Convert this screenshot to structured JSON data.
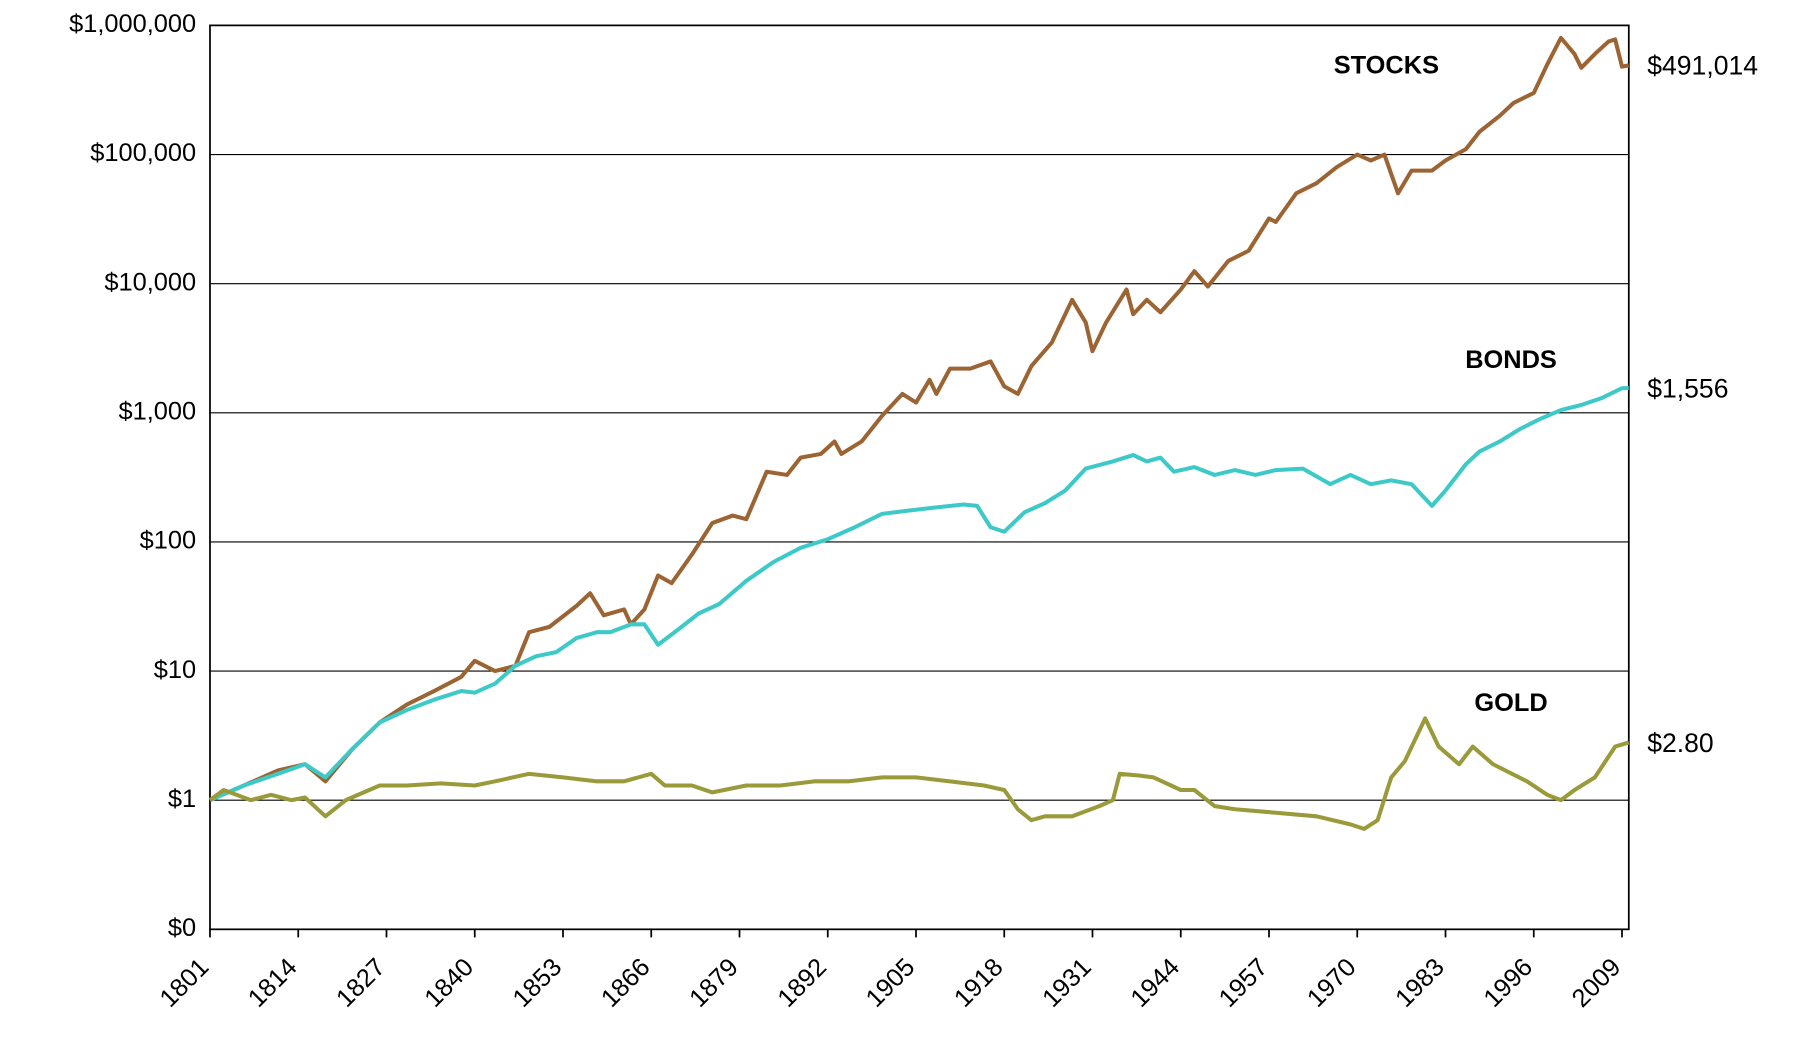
{
  "chart_data": {
    "type": "line",
    "log_y": true,
    "grid": true,
    "xlim": [
      1801,
      2010
    ],
    "xticks": [
      1801,
      1814,
      1827,
      1840,
      1853,
      1866,
      1879,
      1892,
      1905,
      1918,
      1931,
      1944,
      1957,
      1970,
      1983,
      1996,
      2009
    ],
    "ylim": [
      0.1,
      1000000
    ],
    "yticks": [
      {
        "value": 0.1,
        "label": "$0"
      },
      {
        "value": 1,
        "label": "$1"
      },
      {
        "value": 10,
        "label": "$10"
      },
      {
        "value": 100,
        "label": "$100"
      },
      {
        "value": 1000,
        "label": "$1,000"
      },
      {
        "value": 10000,
        "label": "$10,000"
      },
      {
        "value": 100000,
        "label": "$100,000"
      },
      {
        "value": 1000000,
        "label": "$1,000,000"
      }
    ],
    "series": [
      {
        "name": "STOCKS",
        "color": "#9c6433",
        "end_label": "$491,014",
        "x": [
          1801,
          1806,
          1811,
          1815,
          1818,
          1822,
          1826,
          1830,
          1834,
          1838,
          1840,
          1843,
          1846,
          1848,
          1851,
          1855,
          1857,
          1859,
          1862,
          1863,
          1865,
          1867,
          1869,
          1872,
          1875,
          1878,
          1880,
          1883,
          1886,
          1888,
          1891,
          1893,
          1894,
          1897,
          1900,
          1903,
          1905,
          1907,
          1908,
          1910,
          1913,
          1916,
          1918,
          1920,
          1922,
          1925,
          1928,
          1930,
          1931,
          1933,
          1936,
          1937,
          1939,
          1941,
          1944,
          1946,
          1948,
          1951,
          1954,
          1957,
          1958,
          1961,
          1964,
          1967,
          1970,
          1972,
          1974,
          1976,
          1978,
          1981,
          1983,
          1986,
          1988,
          1991,
          1993,
          1996,
          1998,
          2000,
          2002,
          2003,
          2005,
          2007,
          2008,
          2009,
          2010
        ],
        "values": [
          1,
          1.3,
          1.7,
          1.9,
          1.4,
          2.5,
          4,
          5.5,
          7,
          9,
          12,
          10,
          11,
          20,
          22,
          32,
          40,
          27,
          30,
          23,
          30,
          55,
          48,
          80,
          140,
          160,
          150,
          350,
          330,
          450,
          480,
          600,
          480,
          600,
          950,
          1400,
          1200,
          1800,
          1400,
          2200,
          2200,
          2500,
          1600,
          1400,
          2300,
          3500,
          7500,
          5000,
          3000,
          5000,
          9000,
          5800,
          7500,
          6000,
          9000,
          12500,
          9500,
          15000,
          18000,
          32000,
          30000,
          50000,
          60000,
          80000,
          100000,
          90000,
          100000,
          50000,
          75000,
          75000,
          90000,
          110000,
          150000,
          200000,
          250000,
          300000,
          500000,
          800000,
          600000,
          470000,
          600000,
          750000,
          780000,
          480000,
          491014
        ]
      },
      {
        "name": "BONDS",
        "color": "#3ec9c9",
        "end_label": "$1,556",
        "x": [
          1801,
          1806,
          1811,
          1815,
          1818,
          1822,
          1826,
          1830,
          1834,
          1838,
          1840,
          1843,
          1846,
          1849,
          1852,
          1855,
          1858,
          1860,
          1863,
          1865,
          1867,
          1870,
          1873,
          1876,
          1880,
          1884,
          1888,
          1892,
          1896,
          1900,
          1904,
          1908,
          1912,
          1914,
          1916,
          1918,
          1921,
          1924,
          1927,
          1930,
          1934,
          1937,
          1939,
          1941,
          1943,
          1946,
          1949,
          1952,
          1955,
          1958,
          1962,
          1966,
          1969,
          1972,
          1975,
          1978,
          1981,
          1983,
          1986,
          1988,
          1991,
          1994,
          1997,
          2000,
          2003,
          2006,
          2009,
          2010
        ],
        "values": [
          1,
          1.3,
          1.6,
          1.9,
          1.5,
          2.5,
          4,
          5,
          6,
          7,
          6.8,
          8,
          11,
          13,
          14,
          18,
          20,
          20,
          23,
          23,
          16,
          21,
          28,
          33,
          50,
          70,
          90,
          105,
          130,
          165,
          175,
          185,
          195,
          190,
          130,
          120,
          170,
          200,
          250,
          370,
          420,
          470,
          420,
          450,
          350,
          380,
          330,
          360,
          330,
          360,
          370,
          280,
          330,
          280,
          300,
          280,
          190,
          250,
          400,
          500,
          600,
          750,
          900,
          1050,
          1150,
          1300,
          1550,
          1556
        ]
      },
      {
        "name": "GOLD",
        "color": "#9a9a3a",
        "end_label": "$2.80",
        "x": [
          1801,
          1803,
          1807,
          1810,
          1813,
          1815,
          1818,
          1821,
          1826,
          1830,
          1835,
          1840,
          1843,
          1848,
          1853,
          1858,
          1862,
          1866,
          1868,
          1872,
          1875,
          1880,
          1885,
          1890,
          1895,
          1900,
          1905,
          1910,
          1915,
          1918,
          1920,
          1922,
          1924,
          1928,
          1932,
          1934,
          1935,
          1938,
          1940,
          1944,
          1946,
          1949,
          1952,
          1958,
          1964,
          1969,
          1971,
          1973,
          1975,
          1977,
          1980,
          1982,
          1985,
          1987,
          1990,
          1995,
          1998,
          2000,
          2002,
          2005,
          2008,
          2010
        ],
        "values": [
          1,
          1.2,
          1.0,
          1.1,
          1.0,
          1.05,
          0.75,
          1.0,
          1.3,
          1.3,
          1.35,
          1.3,
          1.4,
          1.6,
          1.5,
          1.4,
          1.4,
          1.6,
          1.3,
          1.3,
          1.15,
          1.3,
          1.3,
          1.4,
          1.4,
          1.5,
          1.5,
          1.4,
          1.3,
          1.2,
          0.85,
          0.7,
          0.75,
          0.75,
          0.9,
          1.0,
          1.6,
          1.55,
          1.5,
          1.2,
          1.2,
          0.9,
          0.85,
          0.8,
          0.75,
          0.65,
          0.6,
          0.7,
          1.5,
          2.0,
          4.3,
          2.6,
          1.9,
          2.6,
          1.9,
          1.4,
          1.1,
          1.0,
          1.2,
          1.5,
          2.6,
          2.8
        ]
      }
    ]
  }
}
